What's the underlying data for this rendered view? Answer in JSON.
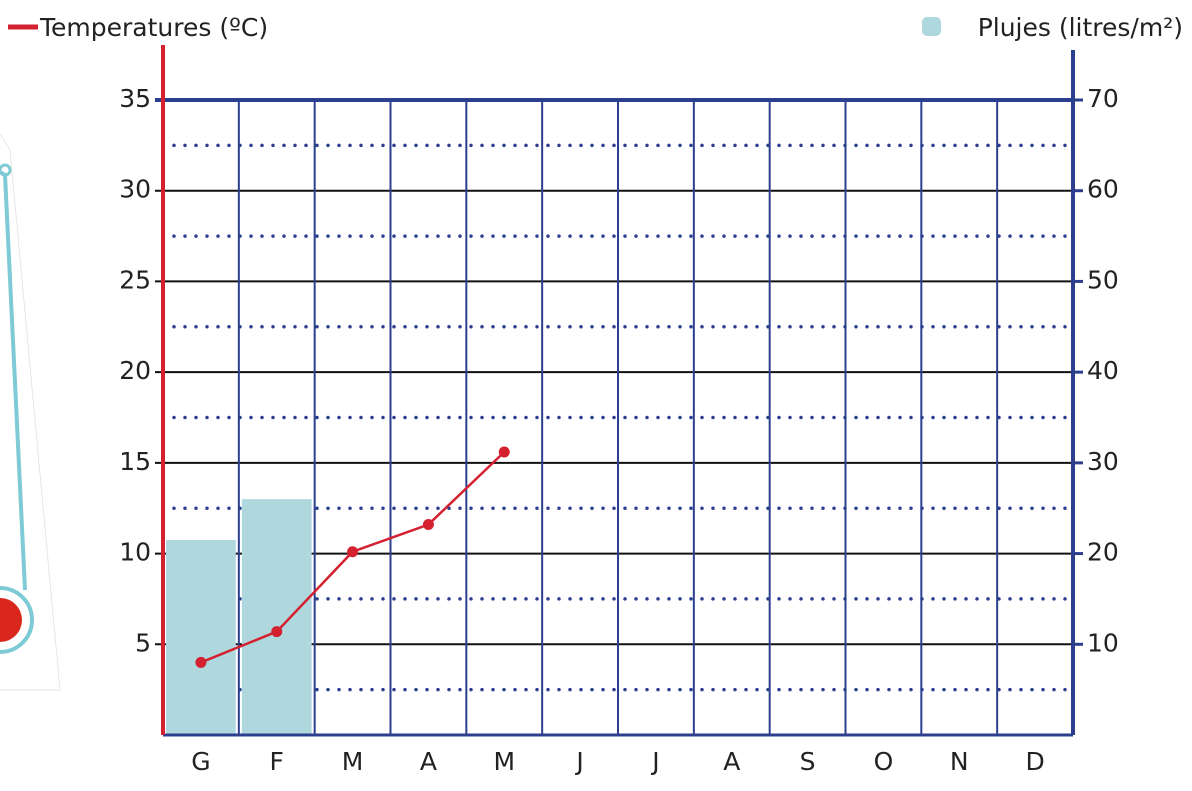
{
  "chart_data": {
    "type": "combo",
    "categories": [
      "G",
      "F",
      "M",
      "A",
      "M",
      "J",
      "J",
      "A",
      "S",
      "O",
      "N",
      "D"
    ],
    "series": [
      {
        "name": "Plujes (litres/m²)",
        "type": "bar",
        "axis": "y2",
        "color": "#aed8de",
        "values": [
          21.5,
          26,
          null,
          null,
          null,
          null,
          null,
          null,
          null,
          null,
          null,
          null
        ]
      },
      {
        "name": "Temperatures (ºC)",
        "type": "line",
        "color": "#d42130",
        "values": [
          4,
          5.7,
          10.1,
          11.6,
          15.6,
          null,
          null,
          null,
          null,
          null,
          null,
          null
        ]
      }
    ],
    "ylim": [
      0,
      35
    ],
    "yticks": [
      5,
      10,
      15,
      20,
      25,
      30,
      35
    ],
    "yminorticks": [
      2.5,
      7.5,
      12.5,
      17.5,
      22.5,
      27.5,
      32.5
    ],
    "y2lim": [
      0,
      70
    ],
    "y2ticks": [
      10,
      20,
      30,
      40,
      50,
      60,
      70
    ],
    "grid": true,
    "axis_color": "#2b3f8e"
  }
}
